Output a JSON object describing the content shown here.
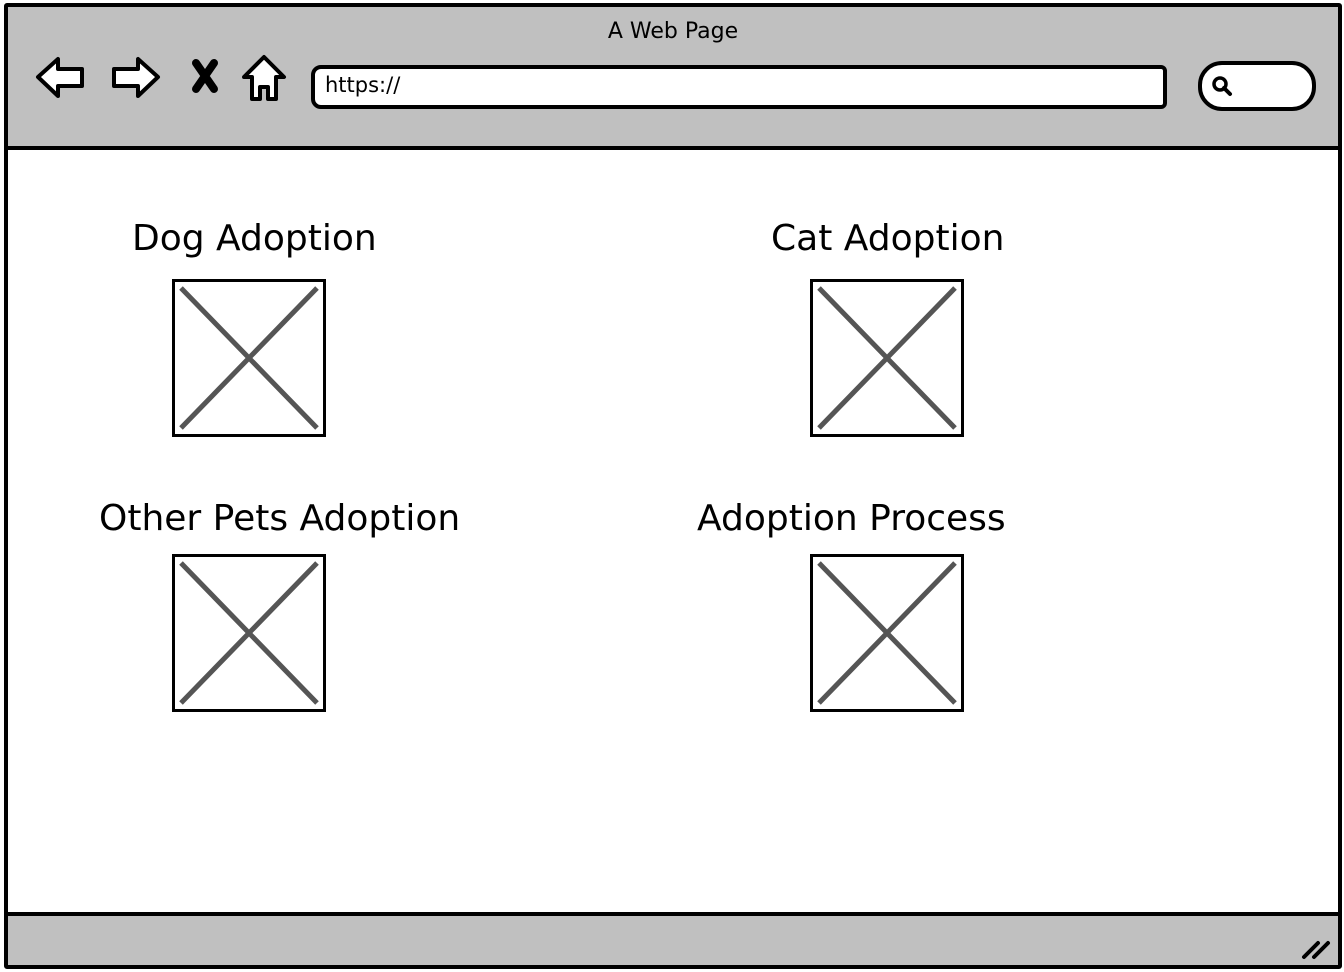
{
  "window": {
    "title": "A Web Page"
  },
  "toolbar": {
    "icons": [
      "back-arrow-icon",
      "forward-arrow-icon",
      "stop-icon",
      "home-icon"
    ]
  },
  "address_bar": {
    "value": "https://"
  },
  "search": {
    "icon": "search-icon"
  },
  "sections": [
    {
      "title": "Dog Adoption",
      "image": "image-placeholder"
    },
    {
      "title": "Cat Adoption",
      "image": "image-placeholder"
    },
    {
      "title": "Other Pets Adoption",
      "image": "image-placeholder"
    },
    {
      "title": "Adoption Process",
      "image": "image-placeholder"
    }
  ],
  "colors": {
    "chrome": "#c0c0c0",
    "border": "#000000",
    "placeholder_cross": "#555555",
    "background": "#ffffff"
  }
}
